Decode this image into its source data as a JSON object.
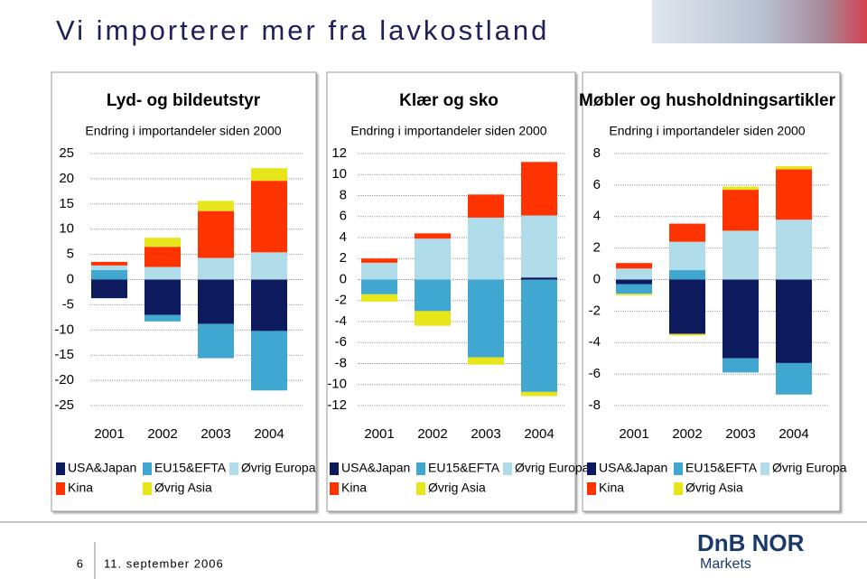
{
  "page": {
    "title": "Vi importerer mer fra lavkostland",
    "page_number": "6",
    "date": "11. september 2006",
    "logo": "DnB NOR",
    "logo_sub": "Markets"
  },
  "chart_data": [
    {
      "type": "bar",
      "stacked": true,
      "title": "Lyd- og bildeutstyr",
      "subtitle": "Endring i importandeler siden 2000",
      "categories": [
        "2001",
        "2002",
        "2003",
        "2004"
      ],
      "ylim": [
        -25,
        25
      ],
      "yticks": [
        25,
        20,
        15,
        10,
        5,
        0,
        -5,
        -10,
        -15,
        -20,
        -25
      ],
      "grid": true,
      "series": [
        {
          "name": "USA&Japan",
          "color": "#0d1b5e",
          "values": [
            -3.7,
            -7,
            -8.8,
            -10.2
          ]
        },
        {
          "name": "EU15&EFTA",
          "color": "#3fa7d0",
          "values": [
            1.9,
            -1.3,
            -6.8,
            -11.8
          ]
        },
        {
          "name": "Øvrig Europa",
          "color": "#b0dcea",
          "values": [
            0.9,
            2.5,
            4.3,
            5.4
          ]
        },
        {
          "name": "Kina",
          "color": "#ff3300",
          "values": [
            0.7,
            4,
            9.3,
            14.2
          ]
        },
        {
          "name": "Øvrig Asia",
          "color": "#e6e61a",
          "values": [
            0,
            1.8,
            2,
            2.5
          ]
        }
      ]
    },
    {
      "type": "bar",
      "stacked": true,
      "title": "Klær og sko",
      "subtitle": "Endring i importandeler siden 2000",
      "categories": [
        "2001",
        "2002",
        "2003",
        "2004"
      ],
      "ylim": [
        -12,
        12
      ],
      "yticks": [
        12,
        10,
        8,
        6,
        4,
        2,
        0,
        -2,
        -4,
        -6,
        -8,
        -10,
        -12
      ],
      "grid": true,
      "series": [
        {
          "name": "USA&Japan",
          "color": "#0d1b5e",
          "values": [
            0,
            0,
            0,
            0.2
          ]
        },
        {
          "name": "EU15&EFTA",
          "color": "#3fa7d0",
          "values": [
            -1.4,
            -3.0,
            -7.4,
            -10.7
          ]
        },
        {
          "name": "Øvrig Europa",
          "color": "#b0dcea",
          "values": [
            1.6,
            3.9,
            5.9,
            5.9
          ]
        },
        {
          "name": "Kina",
          "color": "#ff3300",
          "values": [
            0.4,
            0.5,
            2.2,
            5.1
          ]
        },
        {
          "name": "Øvrig Asia",
          "color": "#e6e61a",
          "values": [
            -0.7,
            -1.4,
            -0.7,
            -0.4
          ]
        }
      ]
    },
    {
      "type": "bar",
      "stacked": true,
      "title": "Møbler og husholdningsartikler",
      "subtitle": "Endring i importandeler siden 2000",
      "categories": [
        "2001",
        "2002",
        "2003",
        "2004"
      ],
      "ylim": [
        -8,
        8
      ],
      "yticks": [
        8,
        6,
        4,
        2,
        0,
        -2,
        -4,
        -6,
        -8
      ],
      "grid": true,
      "series": [
        {
          "name": "USA&Japan",
          "color": "#0d1b5e",
          "values": [
            -0.3,
            -3.45,
            -5.0,
            -5.3
          ]
        },
        {
          "name": "EU15&EFTA",
          "color": "#3fa7d0",
          "values": [
            -0.6,
            0.6,
            -0.9,
            -2.0
          ]
        },
        {
          "name": "Øvrig Europa",
          "color": "#b0dcea",
          "values": [
            0.7,
            1.8,
            3.1,
            3.8
          ]
        },
        {
          "name": "Kina",
          "color": "#ff3300",
          "values": [
            0.35,
            1.15,
            2.6,
            3.2
          ]
        },
        {
          "name": "Øvrig Asia",
          "color": "#e6e61a",
          "values": [
            -0.1,
            -0.1,
            0.2,
            0.2
          ]
        }
      ]
    }
  ]
}
